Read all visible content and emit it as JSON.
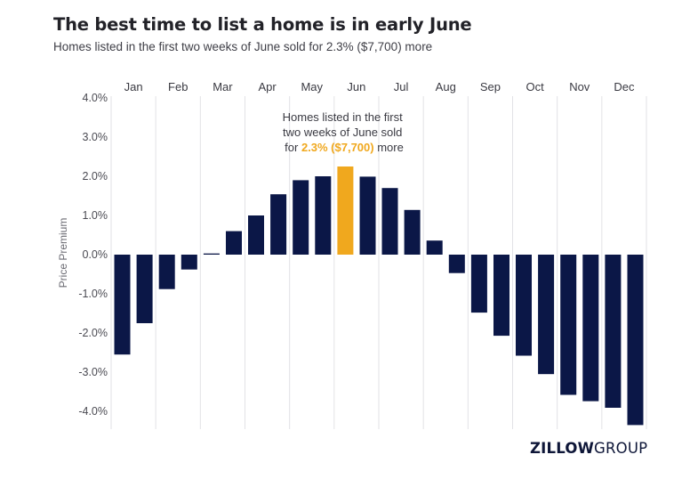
{
  "title": "The best time to list a home is in early June",
  "subtitle": "Homes listed in the first two weeks of June sold for 2.3% ($7,700) more",
  "logo": {
    "bold": "ZILLOW",
    "light": "GROUP"
  },
  "annotation": {
    "line1": "Homes listed in the first",
    "line2": "two weeks of June sold",
    "line3_prefix": "for ",
    "line3_highlight": "2.3% ($7,700)",
    "line3_suffix": " more"
  },
  "colors": {
    "bar": "#0b1747",
    "highlight": "#f0a81e",
    "grid": "#e2e2e6"
  },
  "chart_data": {
    "type": "bar",
    "title": "The best time to list a home is in early June",
    "ylabel": "Price Premium",
    "ylim": [
      -4.4,
      4.2
    ],
    "yticks": [
      4,
      3,
      2,
      1,
      0,
      -1,
      -2,
      -3,
      -4
    ],
    "ytick_labels": [
      "4.0%",
      "3.0%",
      "2.0%",
      "1.0%",
      "0.0%",
      "-1.0%",
      "-2.0%",
      "-3.0%",
      "-4.0%"
    ],
    "months": [
      "Jan",
      "Feb",
      "Mar",
      "Apr",
      "May",
      "Jun",
      "Jul",
      "Aug",
      "Sep",
      "Oct",
      "Nov",
      "Dec"
    ],
    "values": [
      -2.55,
      -1.75,
      -0.88,
      -0.38,
      0.03,
      0.6,
      1.0,
      1.54,
      1.9,
      2.0,
      2.25,
      1.99,
      1.7,
      1.14,
      0.36,
      -0.47,
      -1.48,
      -2.07,
      -2.58,
      -3.05,
      -3.58,
      -3.74,
      -3.91,
      -4.35
    ],
    "highlight_index": 10
  }
}
